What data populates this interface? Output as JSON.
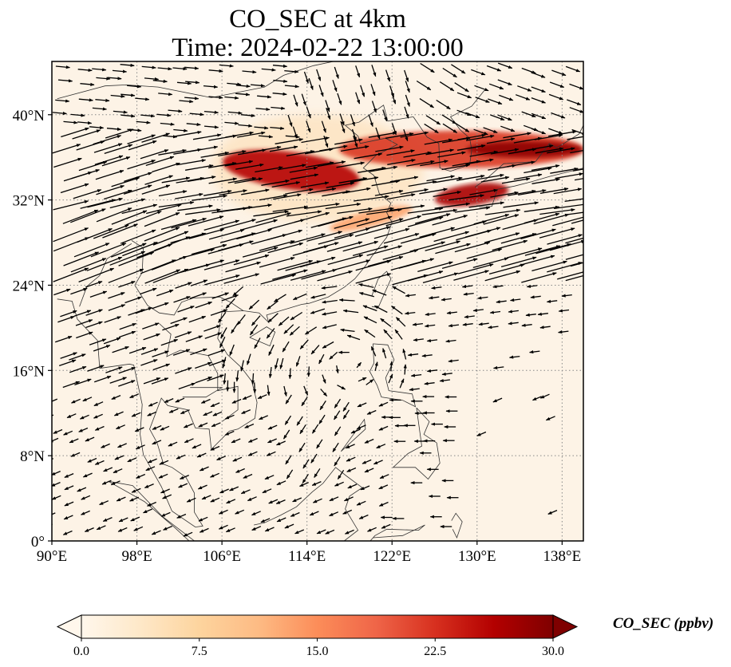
{
  "figure": {
    "title_line1": "CO_SEC at 4km",
    "title_line2": "Time: 2024-02-22 13:00:00"
  },
  "map": {
    "projection": "PlateCarree",
    "lon_range": [
      90,
      140
    ],
    "lat_range": [
      0,
      45
    ],
    "background_color": "#fdf4e7",
    "gridlines": "dotted",
    "x_ticks": [
      {
        "value": 90,
        "label": "90°E"
      },
      {
        "value": 98,
        "label": "98°E"
      },
      {
        "value": 106,
        "label": "106°E"
      },
      {
        "value": 114,
        "label": "114°E"
      },
      {
        "value": 122,
        "label": "122°E"
      },
      {
        "value": 130,
        "label": "130°E"
      },
      {
        "value": 138,
        "label": "138°E"
      }
    ],
    "y_ticks": [
      {
        "value": 0,
        "label": "0°"
      },
      {
        "value": 8,
        "label": "8°N"
      },
      {
        "value": 16,
        "label": "16°N"
      },
      {
        "value": 24,
        "label": "24°N"
      },
      {
        "value": 32,
        "label": "32°N"
      },
      {
        "value": 40,
        "label": "40°N"
      }
    ],
    "plume_regions": [
      {
        "name": "central-china-plume",
        "lon": [
          106,
          119
        ],
        "lat": [
          33,
          36.5
        ],
        "value": 26
      },
      {
        "name": "yellow-sea-korea-band",
        "lon": [
          117,
          140
        ],
        "lat": [
          35,
          38.5
        ],
        "value": 22
      },
      {
        "name": "japan-core",
        "lon": [
          129,
          140
        ],
        "lat": [
          36,
          37.5
        ],
        "value": 29
      },
      {
        "name": "kyushu-shikoku-band",
        "lon": [
          126,
          133
        ],
        "lat": [
          31.5,
          33.5
        ],
        "value": 27
      },
      {
        "name": "east-china-sea-streak",
        "lon": [
          116,
          124
        ],
        "lat": [
          29.5,
          31
        ],
        "value": 13
      },
      {
        "name": "weak-haze-north",
        "lon": [
          105,
          125
        ],
        "lat": [
          30,
          40
        ],
        "value": 6
      }
    ],
    "wind_field": {
      "description": "Wind vectors (quivers): strong westerlies 24–38°N, NE monsoon flow over South China Sea, easterlies near Philippines",
      "regimes": [
        {
          "name": "jet",
          "lat": [
            24,
            38
          ],
          "direction_deg": 15,
          "speed": "strong"
        },
        {
          "name": "north-westerlies",
          "lat": [
            38,
            45
          ],
          "direction_deg": -10,
          "speed": "moderate"
        },
        {
          "name": "scs-cyclonic-turn",
          "lat": [
            10,
            24
          ],
          "direction_deg": 200,
          "speed": "moderate"
        },
        {
          "name": "tropical-easterlies",
          "lat": [
            0,
            16
          ],
          "direction_deg": 205,
          "speed": "weak"
        }
      ]
    }
  },
  "colorbar": {
    "label": "CO_SEC (ppbv)",
    "cmap": "OrRd",
    "vmin": 0.0,
    "vmax": 30.0,
    "extend": "both",
    "ticks": [
      {
        "value": 0.0,
        "label": "0.0"
      },
      {
        "value": 7.5,
        "label": "7.5"
      },
      {
        "value": 15.0,
        "label": "15.0"
      },
      {
        "value": 22.5,
        "label": "22.5"
      },
      {
        "value": 30.0,
        "label": "30.0"
      }
    ],
    "stops": [
      "#fff7ec",
      "#fee8c8",
      "#fdd49e",
      "#fdbb84",
      "#fc8d59",
      "#ef6548",
      "#d7301f",
      "#b30000",
      "#7f0000"
    ]
  },
  "chart_data": {
    "type": "heatmap",
    "title": "CO_SEC at 4km — Time: 2024-02-22 13:00:00",
    "xlabel": "",
    "ylabel": "",
    "x_range": [
      90,
      140
    ],
    "y_range": [
      0,
      45
    ],
    "value_range": [
      0,
      30
    ],
    "units": "ppbv",
    "legend": "bottom colorbar",
    "grid": true
  }
}
